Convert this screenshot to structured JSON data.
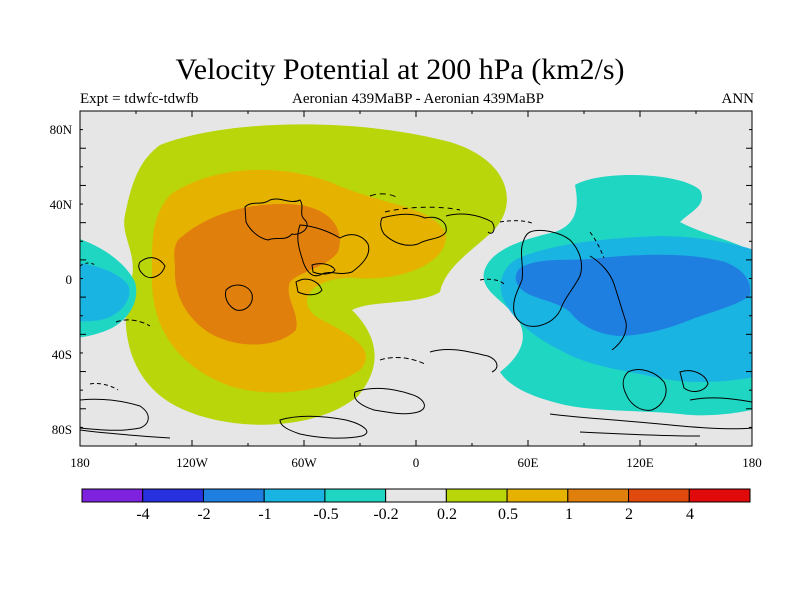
{
  "title": "Velocity Potential at 200 hPa (km2/s)",
  "subtitle_left": "Expt = tdwfc-tdwfb",
  "subtitle_center": "Aeronian 439MaBP - Aeronian 439MaBP",
  "subtitle_right": "ANN",
  "lat_axis": [
    "80N",
    "40N",
    "0",
    "40S",
    "80S"
  ],
  "lon_axis": [
    "180",
    "120W",
    "60W",
    "0",
    "60E",
    "120E",
    "180"
  ],
  "colorbar": {
    "colors": [
      "#7f22e0",
      "#2831de",
      "#1f7fe0",
      "#1ab4e2",
      "#1fd6c3",
      "#e6e6e6",
      "#b8d60a",
      "#e6b200",
      "#e07f0c",
      "#e04a0e",
      "#e00a0a"
    ],
    "labels": [
      "-4",
      "-2",
      "-1",
      "-0.5",
      "-0.2",
      "0.2",
      "0.5",
      "1",
      "2",
      "4"
    ]
  },
  "map_colors": {
    "background": "#e6e6e6",
    "pos_0_2": "#b8d60a",
    "pos_0_5": "#e6b200",
    "pos_1": "#e07f0c",
    "neg_0_2": "#1fd6c3",
    "neg_0_5": "#1ab4e2",
    "neg_1": "#1f7fe0"
  }
}
